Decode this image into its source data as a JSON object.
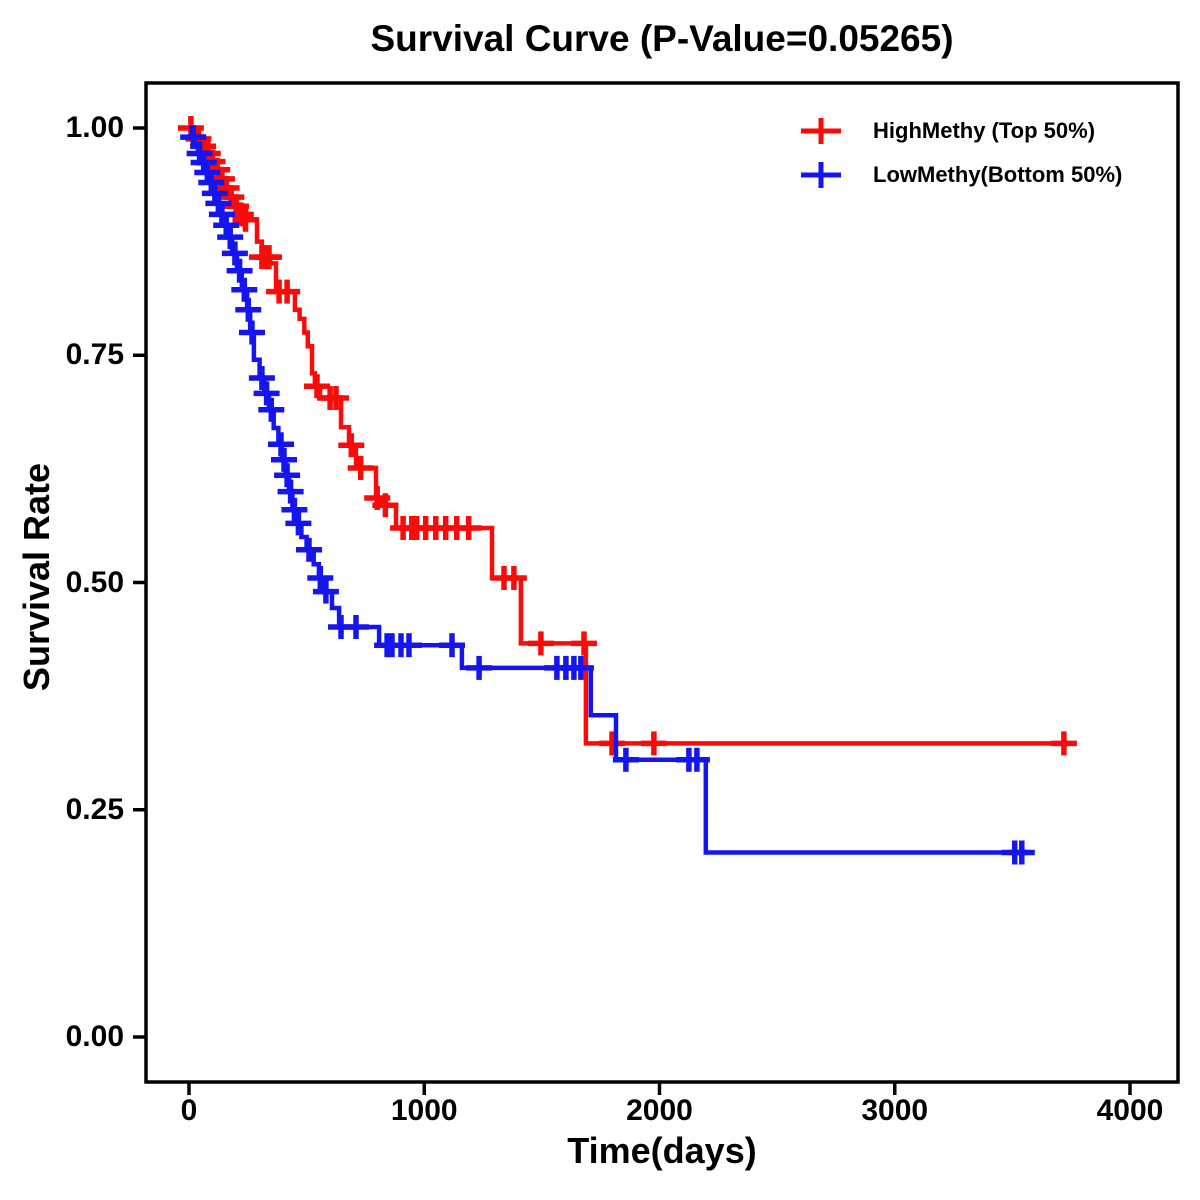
{
  "title": "Survival Curve (P-Value=0.05265)",
  "x_axis": {
    "label": "Time(days)",
    "ticks": [
      "0",
      "1000",
      "2000",
      "3000",
      "4000"
    ],
    "tick_values": [
      0,
      1000,
      2000,
      3000,
      4000
    ],
    "range": [
      0,
      4000
    ]
  },
  "y_axis": {
    "label": "Survival Rate",
    "ticks": [
      "0.00",
      "0.25",
      "0.50",
      "0.75",
      "1.00"
    ],
    "tick_values": [
      0,
      0.25,
      0.5,
      0.75,
      1.0
    ],
    "range": [
      0,
      1
    ]
  },
  "chart_data": {
    "type": "line",
    "subtype": "kaplan-meier-step",
    "title": "Survival Curve (P-Value=0.05265)",
    "p_value": 0.05265,
    "xlabel": "Time(days)",
    "ylabel": "Survival Rate",
    "xlim": [
      0,
      4000
    ],
    "ylim": [
      0,
      1
    ],
    "grid": false,
    "legend_position": "top-right",
    "censor_marker": "plus",
    "series": [
      {
        "name": "HighMethy (Top 50%)",
        "color": "#FB0A0A",
        "steps": [
          [
            0,
            1.0
          ],
          [
            15,
            0.995
          ],
          [
            30,
            0.988
          ],
          [
            50,
            0.98
          ],
          [
            70,
            0.972
          ],
          [
            90,
            0.963
          ],
          [
            110,
            0.954
          ],
          [
            130,
            0.944
          ],
          [
            150,
            0.934
          ],
          [
            170,
            0.924
          ],
          [
            190,
            0.914
          ],
          [
            210,
            0.905
          ],
          [
            234,
            0.899
          ],
          [
            289,
            0.875
          ],
          [
            310,
            0.858
          ],
          [
            345,
            0.851
          ],
          [
            370,
            0.82
          ],
          [
            450,
            0.8
          ],
          [
            470,
            0.79
          ],
          [
            490,
            0.775
          ],
          [
            505,
            0.76
          ],
          [
            523,
            0.73
          ],
          [
            535,
            0.716
          ],
          [
            557,
            0.703
          ],
          [
            646,
            0.671
          ],
          [
            680,
            0.651
          ],
          [
            710,
            0.626
          ],
          [
            795,
            0.593
          ],
          [
            820,
            0.585
          ],
          [
            880,
            0.56
          ],
          [
            1288,
            0.505
          ],
          [
            1411,
            0.433
          ],
          [
            1687,
            0.323
          ]
        ],
        "end_day": 3719,
        "censor_days": [
          8,
          40,
          60,
          80,
          100,
          120,
          140,
          160,
          180,
          200,
          220,
          240,
          310,
          327,
          340,
          383,
          417,
          544,
          600,
          625,
          690,
          730,
          800,
          835,
          910,
          947,
          968,
          1006,
          1049,
          1091,
          1138,
          1189,
          1339,
          1381,
          1496,
          1679,
          1798,
          1976,
          3719
        ]
      },
      {
        "name": "LowMethy(Bottom 50%)",
        "color": "#1515F0",
        "steps": [
          [
            0,
            1.0
          ],
          [
            12,
            0.99
          ],
          [
            25,
            0.981
          ],
          [
            40,
            0.972
          ],
          [
            55,
            0.962
          ],
          [
            70,
            0.951
          ],
          [
            85,
            0.94
          ],
          [
            100,
            0.928
          ],
          [
            115,
            0.917
          ],
          [
            130,
            0.905
          ],
          [
            145,
            0.893
          ],
          [
            162,
            0.88
          ],
          [
            183,
            0.862
          ],
          [
            204,
            0.843
          ],
          [
            225,
            0.822
          ],
          [
            247,
            0.8
          ],
          [
            260,
            0.775
          ],
          [
            276,
            0.745
          ],
          [
            300,
            0.725
          ],
          [
            320,
            0.708
          ],
          [
            340,
            0.69
          ],
          [
            360,
            0.67
          ],
          [
            380,
            0.652
          ],
          [
            395,
            0.635
          ],
          [
            410,
            0.618
          ],
          [
            425,
            0.6
          ],
          [
            440,
            0.58
          ],
          [
            458,
            0.565
          ],
          [
            478,
            0.55
          ],
          [
            500,
            0.536
          ],
          [
            530,
            0.52
          ],
          [
            552,
            0.505
          ],
          [
            575,
            0.49
          ],
          [
            608,
            0.472
          ],
          [
            638,
            0.451
          ],
          [
            808,
            0.431
          ],
          [
            1160,
            0.406
          ],
          [
            1708,
            0.354
          ],
          [
            1815,
            0.305
          ],
          [
            2197,
            0.203
          ]
        ],
        "end_day": 3592,
        "censor_days": [
          18,
          45,
          62,
          78,
          95,
          110,
          125,
          140,
          158,
          175,
          195,
          215,
          235,
          252,
          268,
          310,
          330,
          350,
          391,
          404,
          417,
          432,
          448,
          465,
          510,
          558,
          582,
          646,
          710,
          842,
          863,
          901,
          935,
          1118,
          1233,
          1564,
          1602,
          1636,
          1666,
          1857,
          2125,
          2159,
          3510,
          3540
        ]
      }
    ]
  }
}
